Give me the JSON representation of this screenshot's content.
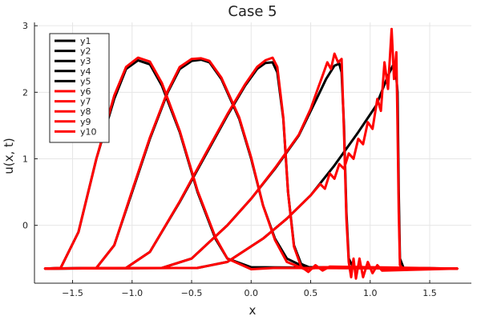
{
  "chart_data": {
    "type": "line",
    "title": "Case 5",
    "xlabel": "x",
    "ylabel": "u(x, t)",
    "xlim": [
      -1.82,
      1.85
    ],
    "ylim": [
      -0.87,
      3.05
    ],
    "xticks": [
      -1.5,
      -1.0,
      -0.5,
      0.0,
      0.5,
      1.0,
      1.5
    ],
    "xtick_labels": [
      "−1.5",
      "−1.0",
      "−0.5",
      "0.0",
      "0.5",
      "1.0",
      "1.5"
    ],
    "yticks": [
      0,
      1,
      2,
      3
    ],
    "ytick_labels": [
      "0",
      "1",
      "2",
      "3"
    ],
    "grid": true,
    "legend": "top-left",
    "series_colors": {
      "y1": "#000000",
      "y2": "#000000",
      "y3": "#000000",
      "y4": "#000000",
      "y5": "#000000",
      "y6": "#ff0000",
      "y7": "#ff0000",
      "y8": "#ff0000",
      "y9": "#ff0000",
      "y10": "#ff0000"
    },
    "series": [
      {
        "name": "y1",
        "points": [
          [
            -1.73,
            -0.65
          ],
          [
            -1.6,
            -0.64
          ],
          [
            -1.45,
            -0.1
          ],
          [
            -1.3,
            1.0
          ],
          [
            -1.15,
            1.9
          ],
          [
            -1.05,
            2.35
          ],
          [
            -0.95,
            2.48
          ],
          [
            -0.85,
            2.42
          ],
          [
            -0.75,
            2.1
          ],
          [
            -0.6,
            1.4
          ],
          [
            -0.45,
            0.5
          ],
          [
            -0.3,
            -0.2
          ],
          [
            -0.2,
            -0.5
          ],
          [
            0.0,
            -0.63
          ],
          [
            1.73,
            -0.65
          ]
        ]
      },
      {
        "name": "y2",
        "points": [
          [
            -1.73,
            -0.65
          ],
          [
            -1.3,
            -0.64
          ],
          [
            -1.15,
            -0.3
          ],
          [
            -1.0,
            0.5
          ],
          [
            -0.85,
            1.3
          ],
          [
            -0.7,
            2.0
          ],
          [
            -0.6,
            2.35
          ],
          [
            -0.5,
            2.47
          ],
          [
            -0.42,
            2.49
          ],
          [
            -0.35,
            2.45
          ],
          [
            -0.25,
            2.2
          ],
          [
            -0.1,
            1.6
          ],
          [
            0.0,
            1.0
          ],
          [
            0.1,
            0.3
          ],
          [
            0.2,
            -0.2
          ],
          [
            0.3,
            -0.5
          ],
          [
            0.45,
            -0.63
          ],
          [
            1.73,
            -0.65
          ]
        ]
      },
      {
        "name": "y3",
        "points": [
          [
            -1.73,
            -0.65
          ],
          [
            -1.05,
            -0.64
          ],
          [
            -0.85,
            -0.4
          ],
          [
            -0.6,
            0.35
          ],
          [
            -0.4,
            1.0
          ],
          [
            -0.2,
            1.65
          ],
          [
            -0.05,
            2.1
          ],
          [
            0.05,
            2.35
          ],
          [
            0.12,
            2.44
          ],
          [
            0.18,
            2.45
          ],
          [
            0.22,
            2.3
          ],
          [
            0.27,
            1.6
          ],
          [
            0.31,
            0.5
          ],
          [
            0.36,
            -0.3
          ],
          [
            0.42,
            -0.58
          ],
          [
            0.5,
            -0.64
          ],
          [
            1.73,
            -0.65
          ]
        ]
      },
      {
        "name": "y4",
        "points": [
          [
            -1.73,
            -0.65
          ],
          [
            -0.75,
            -0.64
          ],
          [
            -0.5,
            -0.5
          ],
          [
            -0.2,
            0.0
          ],
          [
            0.0,
            0.4
          ],
          [
            0.2,
            0.85
          ],
          [
            0.4,
            1.35
          ],
          [
            0.55,
            1.9
          ],
          [
            0.63,
            2.2
          ],
          [
            0.7,
            2.4
          ],
          [
            0.74,
            2.43
          ],
          [
            0.76,
            2.3
          ],
          [
            0.78,
            1.5
          ],
          [
            0.8,
            0.2
          ],
          [
            0.82,
            -0.5
          ],
          [
            0.86,
            -0.64
          ],
          [
            1.73,
            -0.65
          ]
        ]
      },
      {
        "name": "y5",
        "points": [
          [
            -1.73,
            -0.65
          ],
          [
            -0.45,
            -0.64
          ],
          [
            -0.2,
            -0.55
          ],
          [
            0.1,
            -0.2
          ],
          [
            0.3,
            0.1
          ],
          [
            0.5,
            0.45
          ],
          [
            0.7,
            0.9
          ],
          [
            0.9,
            1.4
          ],
          [
            1.05,
            1.8
          ],
          [
            1.15,
            2.25
          ],
          [
            1.19,
            2.4
          ],
          [
            1.21,
            2.42
          ],
          [
            1.23,
            2.0
          ],
          [
            1.24,
            0.5
          ],
          [
            1.25,
            -0.5
          ],
          [
            1.28,
            -0.64
          ],
          [
            1.73,
            -0.65
          ]
        ]
      },
      {
        "name": "y6",
        "points": [
          [
            -1.73,
            -0.65
          ],
          [
            -1.6,
            -0.64
          ],
          [
            -1.45,
            -0.1
          ],
          [
            -1.3,
            1.0
          ],
          [
            -1.15,
            1.95
          ],
          [
            -1.05,
            2.38
          ],
          [
            -0.95,
            2.52
          ],
          [
            -0.85,
            2.46
          ],
          [
            -0.75,
            2.14
          ],
          [
            -0.6,
            1.42
          ],
          [
            -0.45,
            0.52
          ],
          [
            -0.3,
            -0.18
          ],
          [
            -0.2,
            -0.5
          ],
          [
            0.0,
            -0.66
          ],
          [
            0.2,
            -0.64
          ],
          [
            1.73,
            -0.65
          ]
        ]
      },
      {
        "name": "y7",
        "points": [
          [
            -1.73,
            -0.65
          ],
          [
            -1.3,
            -0.64
          ],
          [
            -1.15,
            -0.3
          ],
          [
            -1.0,
            0.52
          ],
          [
            -0.85,
            1.32
          ],
          [
            -0.7,
            2.02
          ],
          [
            -0.6,
            2.38
          ],
          [
            -0.5,
            2.5
          ],
          [
            -0.42,
            2.51
          ],
          [
            -0.35,
            2.47
          ],
          [
            -0.25,
            2.22
          ],
          [
            -0.1,
            1.62
          ],
          [
            0.0,
            1.02
          ],
          [
            0.1,
            0.3
          ],
          [
            0.2,
            -0.22
          ],
          [
            0.3,
            -0.55
          ],
          [
            0.45,
            -0.66
          ],
          [
            0.6,
            -0.63
          ],
          [
            1.73,
            -0.65
          ]
        ]
      },
      {
        "name": "y8",
        "points": [
          [
            -1.73,
            -0.65
          ],
          [
            -1.05,
            -0.64
          ],
          [
            -0.85,
            -0.4
          ],
          [
            -0.6,
            0.36
          ],
          [
            -0.4,
            1.02
          ],
          [
            -0.2,
            1.67
          ],
          [
            -0.05,
            2.12
          ],
          [
            0.05,
            2.38
          ],
          [
            0.12,
            2.48
          ],
          [
            0.18,
            2.52
          ],
          [
            0.22,
            2.38
          ],
          [
            0.27,
            1.62
          ],
          [
            0.31,
            0.5
          ],
          [
            0.36,
            -0.32
          ],
          [
            0.42,
            -0.62
          ],
          [
            0.48,
            -0.7
          ],
          [
            0.54,
            -0.6
          ],
          [
            0.6,
            -0.68
          ],
          [
            0.66,
            -0.62
          ],
          [
            1.73,
            -0.65
          ]
        ]
      },
      {
        "name": "y9",
        "points": [
          [
            -1.73,
            -0.65
          ],
          [
            -0.75,
            -0.64
          ],
          [
            -0.5,
            -0.5
          ],
          [
            -0.2,
            0.0
          ],
          [
            0.0,
            0.4
          ],
          [
            0.2,
            0.86
          ],
          [
            0.4,
            1.36
          ],
          [
            0.5,
            1.75
          ],
          [
            0.55,
            2.0
          ],
          [
            0.6,
            2.25
          ],
          [
            0.64,
            2.45
          ],
          [
            0.67,
            2.35
          ],
          [
            0.7,
            2.58
          ],
          [
            0.73,
            2.45
          ],
          [
            0.76,
            2.5
          ],
          [
            0.78,
            1.4
          ],
          [
            0.8,
            0.1
          ],
          [
            0.82,
            -0.55
          ],
          [
            0.84,
            -0.78
          ],
          [
            0.86,
            -0.5
          ],
          [
            0.88,
            -0.8
          ],
          [
            0.91,
            -0.5
          ],
          [
            0.94,
            -0.78
          ],
          [
            0.98,
            -0.55
          ],
          [
            1.02,
            -0.72
          ],
          [
            1.06,
            -0.6
          ],
          [
            1.1,
            -0.68
          ],
          [
            1.73,
            -0.65
          ]
        ]
      },
      {
        "name": "y10",
        "points": [
          [
            -1.73,
            -0.65
          ],
          [
            -0.45,
            -0.64
          ],
          [
            -0.2,
            -0.55
          ],
          [
            0.1,
            -0.2
          ],
          [
            0.3,
            0.1
          ],
          [
            0.5,
            0.45
          ],
          [
            0.58,
            0.62
          ],
          [
            0.62,
            0.55
          ],
          [
            0.66,
            0.78
          ],
          [
            0.7,
            0.7
          ],
          [
            0.74,
            0.92
          ],
          [
            0.78,
            0.85
          ],
          [
            0.82,
            1.08
          ],
          [
            0.86,
            1.0
          ],
          [
            0.9,
            1.3
          ],
          [
            0.94,
            1.22
          ],
          [
            0.98,
            1.55
          ],
          [
            1.02,
            1.45
          ],
          [
            1.06,
            1.9
          ],
          [
            1.09,
            1.72
          ],
          [
            1.12,
            2.45
          ],
          [
            1.15,
            2.05
          ],
          [
            1.18,
            2.95
          ],
          [
            1.2,
            2.2
          ],
          [
            1.22,
            2.6
          ],
          [
            1.23,
            1.5
          ],
          [
            1.24,
            0.2
          ],
          [
            1.25,
            -0.6
          ],
          [
            1.28,
            -0.66
          ],
          [
            1.73,
            -0.65
          ]
        ]
      }
    ]
  }
}
